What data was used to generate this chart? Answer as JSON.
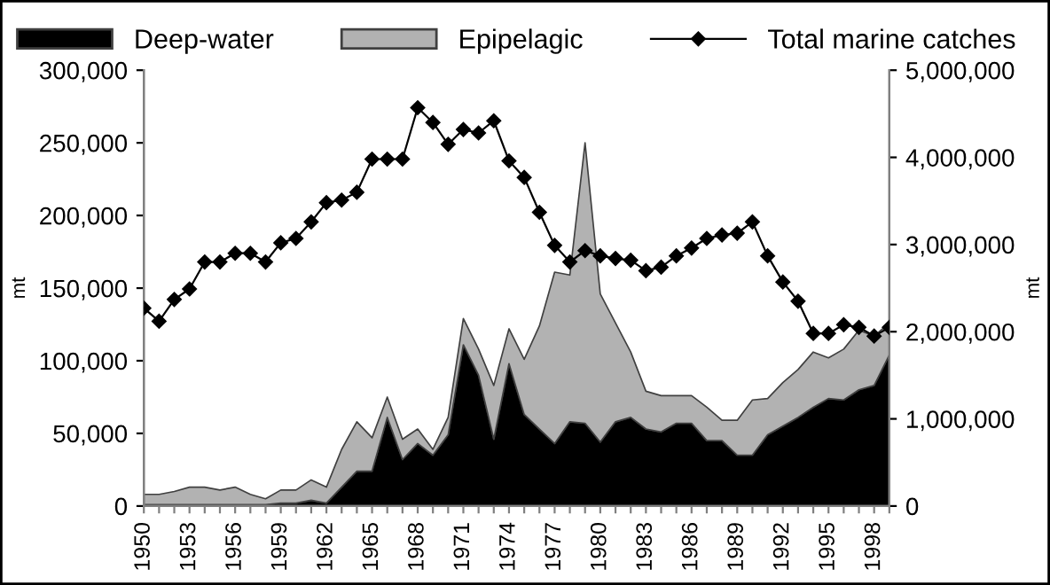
{
  "chart_data": {
    "type": "area",
    "stacked": true,
    "categories": [
      "1950",
      null,
      null,
      "1953",
      null,
      null,
      "1956",
      null,
      null,
      "1959",
      null,
      null,
      "1962",
      null,
      null,
      "1965",
      null,
      null,
      "1968",
      null,
      null,
      "1971",
      null,
      null,
      "1974",
      null,
      null,
      "1977",
      null,
      null,
      "1980",
      null,
      null,
      "1983",
      null,
      null,
      "1986",
      null,
      null,
      "1989",
      null,
      null,
      "1992",
      null,
      null,
      "1995",
      null,
      null,
      "1998",
      null
    ],
    "ylabel": "mt",
    "y2label": "mt",
    "ylim": [
      0,
      300000
    ],
    "yticks": [
      {
        "value": 0,
        "label": "0"
      },
      {
        "value": 50000,
        "label": "50,000"
      },
      {
        "value": 100000,
        "label": "100,000"
      },
      {
        "value": 150000,
        "label": "150,000"
      },
      {
        "value": 200000,
        "label": "200,000"
      },
      {
        "value": 250000,
        "label": "250,000"
      },
      {
        "value": 300000,
        "label": "300,000"
      }
    ],
    "y2lim": [
      0,
      5000000
    ],
    "y2ticks": [
      {
        "value": 0,
        "label": "0"
      },
      {
        "value": 1000000,
        "label": "1,000,000"
      },
      {
        "value": 2000000,
        "label": "2,000,000"
      },
      {
        "value": 3000000,
        "label": "3,000,000"
      },
      {
        "value": 4000000,
        "label": "4,000,000"
      },
      {
        "value": 5000000,
        "label": "5,000,000"
      }
    ],
    "grid": false,
    "legend": "top",
    "series": [
      {
        "name": "Deep-water",
        "color": "#000000",
        "values": [
          1000,
          1000,
          1000,
          1000,
          1000,
          1000,
          1000,
          1000,
          1000,
          2000,
          2000,
          4000,
          2000,
          13000,
          24000,
          24000,
          61000,
          32000,
          43000,
          35000,
          49000,
          111000,
          90000,
          46000,
          98000,
          63000,
          53000,
          43000,
          58000,
          57000,
          44000,
          58000,
          61000,
          53000,
          51000,
          57000,
          57000,
          45000,
          45000,
          35000,
          35000,
          49000,
          55000,
          61000,
          68000,
          74000,
          73000,
          80000,
          83000,
          104000
        ]
      },
      {
        "name": "Epipelagic",
        "color": "#b2b2b2",
        "values": [
          7000,
          7000,
          9000,
          12000,
          12000,
          10000,
          12000,
          7000,
          4000,
          9000,
          9000,
          14000,
          11000,
          26000,
          34000,
          23000,
          14000,
          14000,
          10000,
          4000,
          12000,
          18000,
          18000,
          37000,
          24000,
          38000,
          71000,
          118000,
          101000,
          193000,
          102000,
          68000,
          45000,
          26000,
          25000,
          19000,
          19000,
          23000,
          14000,
          24000,
          38000,
          25000,
          30000,
          33000,
          38000,
          28000,
          35000,
          41000,
          34000,
          22000
        ]
      },
      {
        "name": "Total marine catches",
        "type": "line",
        "axis": "y2",
        "color": "#000000",
        "marker": "diamond",
        "values": [
          2270000,
          2120000,
          2370000,
          2490000,
          2800000,
          2800000,
          2900000,
          2900000,
          2800000,
          3020000,
          3070000,
          3260000,
          3480000,
          3510000,
          3600000,
          3980000,
          3980000,
          3980000,
          4570000,
          4400000,
          4150000,
          4320000,
          4280000,
          4420000,
          3960000,
          3770000,
          3370000,
          2990000,
          2800000,
          2930000,
          2870000,
          2840000,
          2820000,
          2700000,
          2740000,
          2870000,
          2960000,
          3070000,
          3110000,
          3130000,
          3260000,
          2870000,
          2570000,
          2350000,
          1980000,
          1980000,
          2080000,
          2050000,
          1950000,
          2050000
        ]
      }
    ]
  }
}
